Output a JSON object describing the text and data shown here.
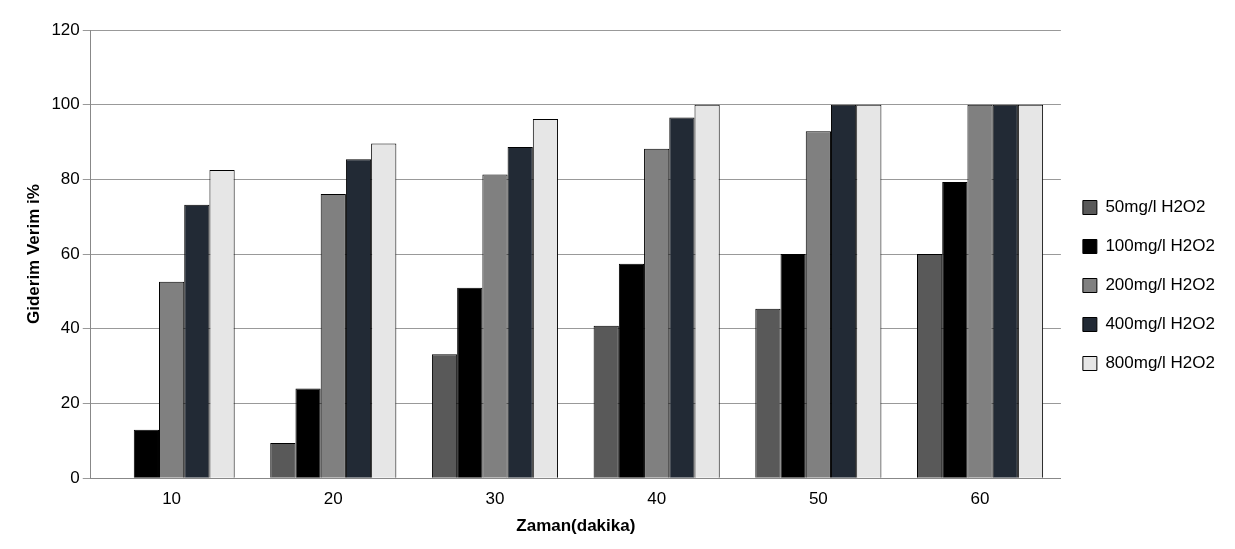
{
  "chart_data": {
    "type": "bar",
    "xlabel": "Zaman(dakika)",
    "ylabel": "Giderim Verim i%",
    "categories": [
      "10",
      "20",
      "30",
      "40",
      "50",
      "60"
    ],
    "series": [
      {
        "name": "50mg/l H2O2",
        "color": "#595959",
        "values": [
          0,
          9.4,
          33.2,
          40.8,
          45.4,
          60
        ]
      },
      {
        "name": "100mg/l H2O2",
        "color": "#000000",
        "values": [
          13,
          24,
          51,
          57.4,
          60,
          79.3
        ]
      },
      {
        "name": "200mg/l H2O2",
        "color": "#808080",
        "values": [
          52.6,
          76.1,
          81.3,
          88.2,
          92.9,
          100
        ]
      },
      {
        "name": "400mg/l H2O2",
        "color": "#222a35",
        "values": [
          73.2,
          85.4,
          88.7,
          96.6,
          100,
          100
        ]
      },
      {
        "name": "800mg/l H2O2",
        "color": "#e6e6e6",
        "values": [
          82.5,
          89.6,
          96.2,
          100,
          100,
          100
        ]
      }
    ],
    "ylim": [
      0,
      120
    ],
    "yticks": [
      0,
      20,
      40,
      60,
      80,
      100,
      120
    ],
    "grid": "y",
    "legend": "right"
  }
}
